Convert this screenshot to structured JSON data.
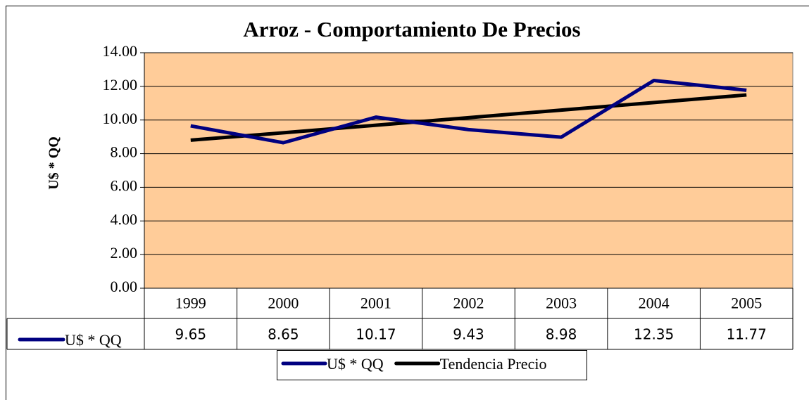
{
  "chart_data": {
    "type": "line",
    "title": "Arroz - Comportamiento De Precios",
    "ylabel": "U$ * QQ",
    "categories": [
      "1999",
      "2000",
      "2001",
      "2002",
      "2003",
      "2004",
      "2005"
    ],
    "series": [
      {
        "name": "U$ * QQ",
        "color": "#000080",
        "values": [
          9.65,
          8.65,
          10.17,
          9.43,
          8.98,
          12.35,
          11.77
        ]
      },
      {
        "name": "Tendencia Precio",
        "color": "#000000",
        "values": [
          8.8,
          9.24,
          9.69,
          10.14,
          10.59,
          11.04,
          11.49
        ]
      }
    ],
    "ylim": [
      0,
      14
    ],
    "yticks": [
      {
        "value": 0,
        "label": "0.00"
      },
      {
        "value": 2,
        "label": "2.00"
      },
      {
        "value": 4,
        "label": "4.00"
      },
      {
        "value": 6,
        "label": "6.00"
      },
      {
        "value": 8,
        "label": "8.00"
      },
      {
        "value": 10,
        "label": "10.00"
      },
      {
        "value": 12,
        "label": "12.00"
      },
      {
        "value": 14,
        "label": "14.00"
      }
    ],
    "grid": true,
    "plot_background": "#ffcc99",
    "data_table": true,
    "legend": "bottom"
  }
}
